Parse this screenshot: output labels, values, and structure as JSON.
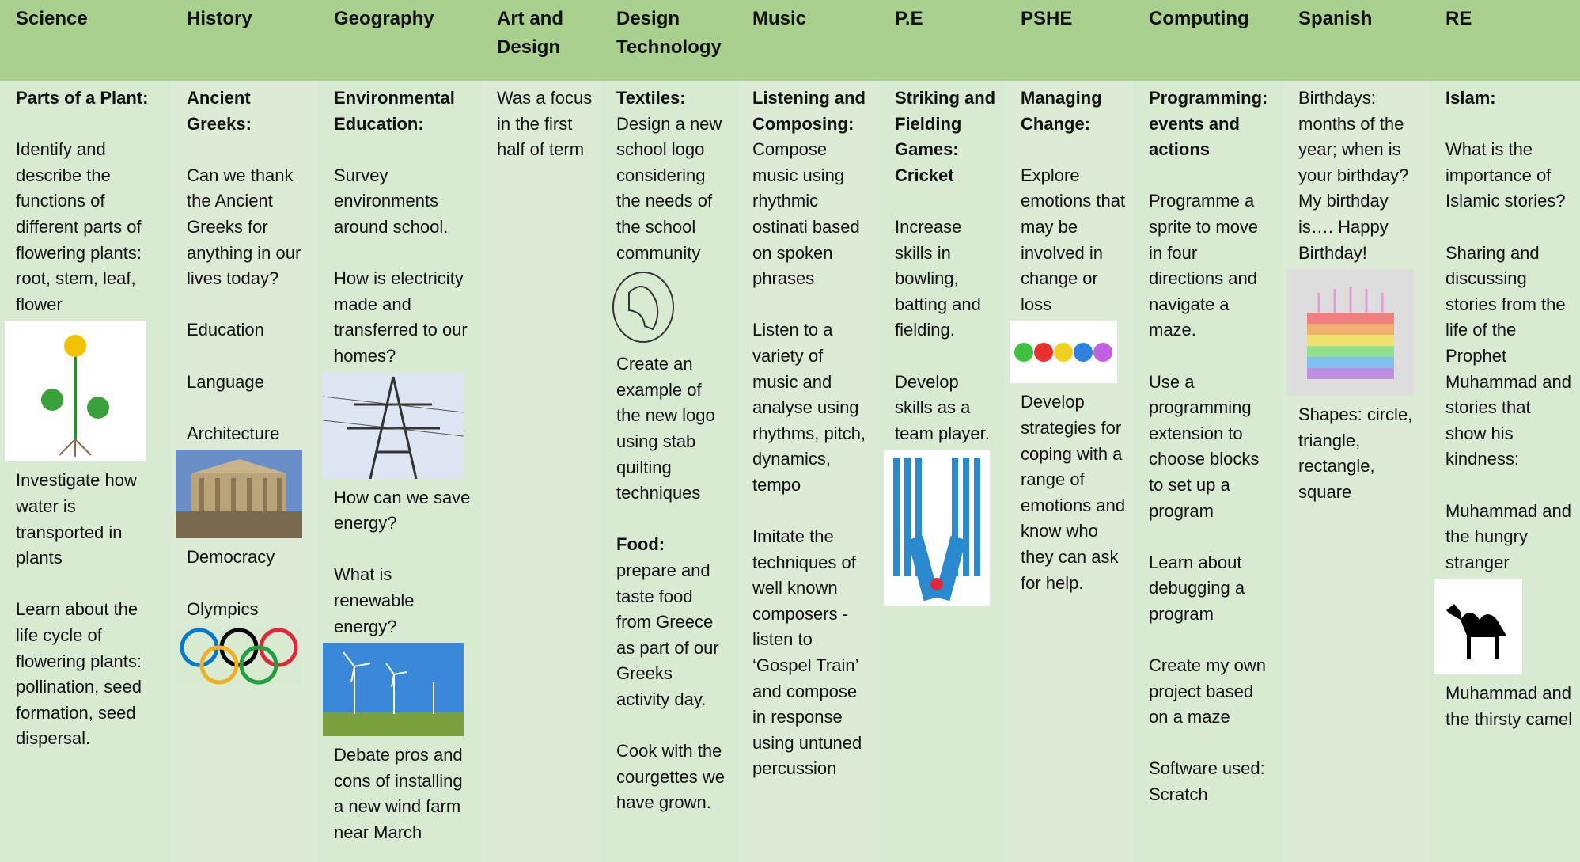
{
  "table": {
    "headers": [
      "Science",
      "History",
      "Geography",
      "Art and Design",
      "Design Technology",
      "Music",
      "P.E",
      "PSHE",
      "Computing",
      "Spanish",
      "RE"
    ],
    "cells": [
      {
        "sections": [
          {
            "heading": "Parts of a Plant:",
            "paras": [
              "Identify and describe the functions of different parts of flowering plants: root, stem, leaf, flower",
              "Investigate how water is transported in plants",
              "Learn about the life cycle of flowering plants: pollination, seed formation, seed dispersal."
            ]
          }
        ]
      },
      {
        "sections": [
          {
            "heading": "Ancient Greeks:",
            "paras": [
              "Can we thank the Ancient Greeks for anything in our lives today?",
              "Education",
              "Language",
              "Architecture",
              "Democracy",
              "Olympics"
            ]
          }
        ]
      },
      {
        "sections": [
          {
            "heading": "Environmental Education:",
            "paras": [
              "Survey environments around school.",
              "How is electricity made and transferred to our homes?",
              "How can we save energy?",
              "What is renewable energy?",
              "Debate pros and cons of installing a new wind farm near March"
            ]
          }
        ]
      },
      {
        "sections": [
          {
            "paras": [
              "Was a focus in the first half of term"
            ]
          }
        ]
      },
      {
        "sections": [
          {
            "heading": "Textiles:",
            "paras": [
              "Design a new school logo considering the needs of the school community",
              "Create an example of the new logo using stab quilting techniques"
            ]
          },
          {
            "heading": "Food:",
            "paras": [
              "prepare and taste food from Greece as part of our Greeks activity day.",
              "Cook with the courgettes we have grown."
            ]
          }
        ]
      },
      {
        "sections": [
          {
            "heading": "Listening and Composing:",
            "paras": [
              "Compose music using rhythmic ostinati based on spoken phrases",
              "Listen to a variety of music and analyse using rhythms, pitch, dynamics, tempo",
              "Imitate the techniques of well known composers - listen to ‘Gospel Train’ and compose in response using untuned percussion"
            ]
          }
        ]
      },
      {
        "sections": [
          {
            "heading": "Striking and Fielding Games: Cricket",
            "paras": [
              "Increase skills in bowling, batting and fielding.",
              "Develop skills as a team player."
            ]
          }
        ]
      },
      {
        "sections": [
          {
            "heading": "Managing Change:",
            "paras": [
              "Explore emotions that may be involved in change or loss",
              "Develop strategies for coping with a range of emotions and know who they can ask for help."
            ]
          }
        ]
      },
      {
        "sections": [
          {
            "heading": "Programming: events and actions",
            "paras": [
              "Programme a sprite to move in four directions and navigate a maze.",
              "Use a programming extension to choose blocks to set up a program",
              "Learn about debugging a program",
              "Create my own project based on a maze",
              "Software used: Scratch"
            ]
          }
        ]
      },
      {
        "sections": [
          {
            "paras": [
              "Birthdays: months of the year; when is your birthday? My birthday is…. Happy Birthday!",
              "Shapes: circle, triangle, rectangle, square"
            ]
          }
        ]
      },
      {
        "sections": [
          {
            "heading": "Islam:",
            "paras": [
              "What is the importance of Islamic stories?",
              "Sharing and discussing stories from the life of the Prophet Muhammad and stories that show his kindness:",
              "Muhammad and the hungry stranger",
              "Muhammad and the thirsty camel"
            ]
          }
        ]
      }
    ]
  }
}
